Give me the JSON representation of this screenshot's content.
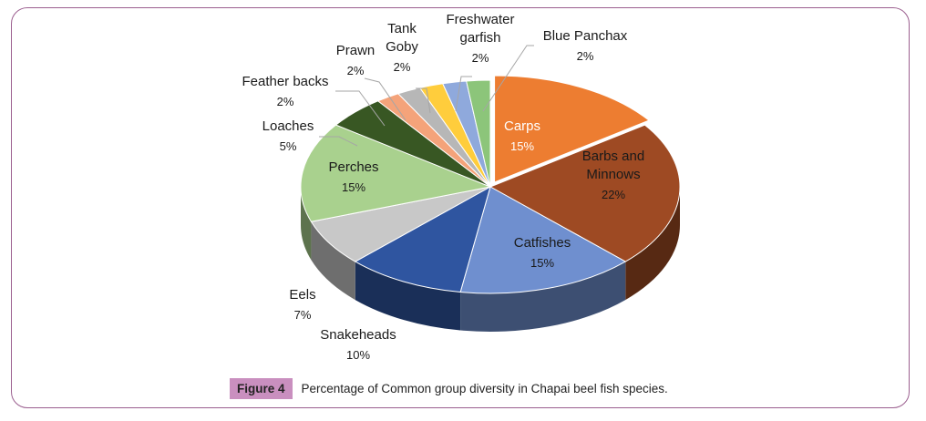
{
  "chart_data": {
    "type": "pie",
    "title": "",
    "categories": [
      "Carps",
      "Barbs and Minnows",
      "Catfishes",
      "Snakeheads",
      "Eels",
      "Perches",
      "Loaches",
      "Feather backs",
      "Prawn",
      "Tank Goby",
      "Freshwater garfish",
      "Blue Panchax"
    ],
    "values": [
      15,
      22,
      15,
      10,
      7,
      15,
      5,
      2,
      2,
      2,
      2,
      2
    ],
    "value_labels": [
      "15%",
      "22%",
      "15%",
      "10%",
      "7%",
      "15%",
      "5%",
      "2%",
      "2%",
      "2%",
      "2%",
      "2%"
    ],
    "colors": [
      "#ed7d31",
      "#9e4a23",
      "#6f8fcf",
      "#2f55a0",
      "#c8c8c8",
      "#a9d18e",
      "#385723",
      "#f4a37a",
      "#b7b7b7",
      "#ffcd3c",
      "#8fa9dc",
      "#8cc57a"
    ],
    "style": "3d-exploded"
  },
  "caption": {
    "figure_label": "Figure 4",
    "text": "Percentage of Common group diversity in Chapai beel fish species."
  }
}
